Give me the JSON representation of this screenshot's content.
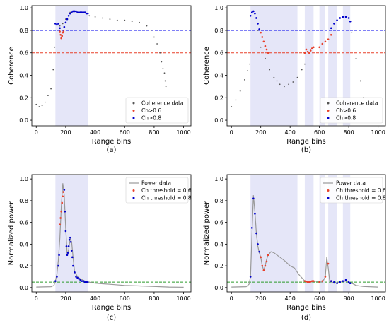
{
  "chart_data": [
    {
      "type": "scatter",
      "caption": "(a)",
      "xlabel": "Range bins",
      "ylabel": "Coherence",
      "xlim": [
        -30,
        1050
      ],
      "ylim": [
        -0.05,
        1.02
      ],
      "xticks": [
        0,
        200,
        400,
        600,
        800,
        1000
      ],
      "yticks": [
        0.0,
        0.2,
        0.4,
        0.6,
        0.8,
        1.0
      ],
      "shaded_ranges": [
        [
          130,
          350
        ]
      ],
      "hlines": [
        {
          "y": 0.6,
          "color": "#e8402a"
        },
        {
          "y": 0.8,
          "color": "#0000ee"
        }
      ],
      "legend": {
        "position": "lower-right",
        "entries": [
          "Coherence data",
          "Ch>0.6",
          "Ch>0.8"
        ]
      },
      "series": [
        {
          "name": "Coherence data",
          "color": "#555555",
          "style": "dots",
          "x": [
            0,
            20,
            40,
            60,
            80,
            100,
            115,
            125,
            130,
            140,
            160,
            180,
            200,
            230,
            260,
            300,
            340,
            360,
            400,
            450,
            500,
            550,
            600,
            650,
            700,
            750,
            780,
            800,
            820,
            840,
            850,
            860,
            870,
            875,
            880
          ],
          "y": [
            0.14,
            0.12,
            0.13,
            0.16,
            0.22,
            0.28,
            0.45,
            0.65,
            0.86,
            0.85,
            0.84,
            0.86,
            0.9,
            0.96,
            0.97,
            0.96,
            0.95,
            0.93,
            0.92,
            0.91,
            0.9,
            0.89,
            0.89,
            0.88,
            0.87,
            0.84,
            0.8,
            0.74,
            0.68,
            0.6,
            0.52,
            0.46,
            0.42,
            0.35,
            0.3
          ]
        },
        {
          "name": "Ch>0.6",
          "color": "#e8402a",
          "style": "dots",
          "x": [
            160,
            165,
            170,
            175,
            180,
            185
          ],
          "y": [
            0.79,
            0.76,
            0.73,
            0.75,
            0.78,
            0.79
          ]
        },
        {
          "name": "Ch>0.8",
          "color": "#0000cc",
          "style": "dots",
          "x": [
            130,
            140,
            150,
            160,
            190,
            200,
            210,
            220,
            230,
            240,
            250,
            260,
            270,
            280,
            290,
            300,
            310,
            320,
            330,
            340,
            350
          ],
          "y": [
            0.86,
            0.85,
            0.86,
            0.82,
            0.83,
            0.87,
            0.9,
            0.93,
            0.95,
            0.96,
            0.97,
            0.97,
            0.97,
            0.96,
            0.96,
            0.96,
            0.96,
            0.96,
            0.96,
            0.95,
            0.95
          ]
        }
      ]
    },
    {
      "type": "scatter",
      "caption": "(b)",
      "xlabel": "Range bins",
      "ylabel": "Coherence",
      "xlim": [
        -30,
        1050
      ],
      "ylim": [
        -0.05,
        1.02
      ],
      "xticks": [
        0,
        200,
        400,
        600,
        800,
        1000
      ],
      "yticks": [
        0.0,
        0.2,
        0.4,
        0.6,
        0.8,
        1.0
      ],
      "shaded_ranges": [
        [
          130,
          450
        ],
        [
          500,
          560
        ],
        [
          600,
          640
        ],
        [
          660,
          720
        ],
        [
          760,
          810
        ]
      ],
      "hlines": [
        {
          "y": 0.6,
          "color": "#e8402a"
        },
        {
          "y": 0.8,
          "color": "#0000ee"
        }
      ],
      "legend": {
        "position": "lower-right",
        "entries": [
          "Coherence data",
          "Ch>0.6",
          "Ch>0.8"
        ]
      },
      "series": [
        {
          "name": "Coherence data",
          "color": "#555555",
          "style": "dots",
          "x": [
            0,
            30,
            60,
            90,
            110,
            125,
            180,
            200,
            230,
            260,
            290,
            310,
            330,
            360,
            390,
            420,
            450,
            480,
            500,
            820,
            850,
            880,
            900
          ],
          "y": [
            0.12,
            0.18,
            0.26,
            0.36,
            0.44,
            0.5,
            0.8,
            0.65,
            0.55,
            0.45,
            0.38,
            0.35,
            0.32,
            0.3,
            0.32,
            0.34,
            0.38,
            0.45,
            0.5,
            0.78,
            0.55,
            0.35,
            0.2
          ]
        },
        {
          "name": "Ch>0.6",
          "color": "#e8402a",
          "style": "dots",
          "x": [
            200,
            210,
            220,
            230,
            240,
            250,
            500,
            510,
            520,
            530,
            540,
            550,
            560,
            600,
            620,
            640,
            660,
            680
          ],
          "y": [
            0.78,
            0.74,
            0.7,
            0.66,
            0.63,
            0.6,
            0.6,
            0.63,
            0.61,
            0.6,
            0.62,
            0.64,
            0.65,
            0.65,
            0.68,
            0.7,
            0.72,
            0.76
          ]
        },
        {
          "name": "Ch>0.8",
          "color": "#0000cc",
          "style": "dots",
          "x": [
            130,
            140,
            150,
            160,
            170,
            180,
            190,
            680,
            700,
            720,
            740,
            760,
            780,
            800,
            810
          ],
          "y": [
            0.93,
            0.96,
            0.97,
            0.95,
            0.91,
            0.86,
            0.81,
            0.82,
            0.86,
            0.89,
            0.91,
            0.92,
            0.92,
            0.91,
            0.88
          ]
        }
      ]
    },
    {
      "type": "line",
      "caption": "(c)",
      "xlabel": "Range bins",
      "ylabel": "Normalized power",
      "xlim": [
        -30,
        1050
      ],
      "ylim": [
        -0.04,
        1.04
      ],
      "xticks": [
        0,
        200,
        400,
        600,
        800,
        1000
      ],
      "yticks": [
        0.0,
        0.2,
        0.4,
        0.6,
        0.8,
        1.0
      ],
      "shaded_ranges": [
        [
          130,
          350
        ]
      ],
      "hlines": [
        {
          "y": 0.05,
          "color": "#2a9a2a"
        }
      ],
      "legend": {
        "position": "upper-right",
        "entries": [
          "Power data",
          "Ch threshold = 0.6",
          "Ch threshold = 0.8"
        ]
      },
      "series": [
        {
          "name": "Power data",
          "color": "#999999",
          "style": "line",
          "x": [
            0,
            100,
            120,
            130,
            140,
            150,
            160,
            170,
            180,
            190,
            200,
            210,
            220,
            230,
            240,
            250,
            260,
            280,
            300,
            330,
            360,
            400,
            450,
            500,
            600,
            700,
            800,
            900,
            1000
          ],
          "y": [
            0.005,
            0.008,
            0.02,
            0.06,
            0.12,
            0.25,
            0.45,
            0.75,
            0.96,
            0.85,
            0.55,
            0.3,
            0.35,
            0.45,
            0.42,
            0.28,
            0.15,
            0.1,
            0.08,
            0.06,
            0.05,
            0.04,
            0.035,
            0.03,
            0.02,
            0.015,
            0.01,
            0.005,
            0.003
          ]
        },
        {
          "name": "Ch threshold = 0.6",
          "color": "#e8402a",
          "style": "dots",
          "x": [
            160,
            165,
            170,
            175,
            180,
            185
          ],
          "y": [
            0.58,
            0.64,
            0.7,
            0.78,
            0.84,
            0.88
          ]
        },
        {
          "name": "Ch threshold = 0.8",
          "color": "#0000cc",
          "style": "dots",
          "x": [
            130,
            140,
            150,
            155,
            190,
            195,
            200,
            205,
            210,
            215,
            220,
            225,
            230,
            235,
            240,
            245,
            250,
            260,
            270,
            280,
            290,
            300,
            310,
            320,
            330,
            340,
            350
          ],
          "y": [
            0.06,
            0.1,
            0.2,
            0.3,
            0.9,
            0.7,
            0.52,
            0.38,
            0.3,
            0.32,
            0.38,
            0.44,
            0.46,
            0.42,
            0.34,
            0.28,
            0.2,
            0.14,
            0.1,
            0.09,
            0.08,
            0.07,
            0.06,
            0.06,
            0.05,
            0.05,
            0.05
          ]
        }
      ]
    },
    {
      "type": "line",
      "caption": "(d)",
      "xlabel": "Range bins",
      "ylabel": "Normalized power",
      "xlim": [
        -30,
        1050
      ],
      "ylim": [
        -0.04,
        1.04
      ],
      "xticks": [
        0,
        200,
        400,
        600,
        800,
        1000
      ],
      "yticks": [
        0.0,
        0.2,
        0.4,
        0.6,
        0.8,
        1.0
      ],
      "shaded_ranges": [
        [
          130,
          450
        ],
        [
          500,
          560
        ],
        [
          600,
          640
        ],
        [
          660,
          720
        ],
        [
          760,
          810
        ]
      ],
      "hlines": [
        {
          "y": 0.05,
          "color": "#2a9a2a"
        }
      ],
      "legend": {
        "position": "upper-right",
        "entries": [
          "Power data",
          "Ch threshold = 0.6",
          "Ch threshold = 0.8"
        ]
      },
      "series": [
        {
          "name": "Power data",
          "color": "#999999",
          "style": "line",
          "x": [
            0,
            100,
            120,
            130,
            140,
            150,
            160,
            170,
            180,
            190,
            200,
            210,
            220,
            230,
            240,
            250,
            270,
            290,
            310,
            330,
            360,
            400,
            430,
            460,
            500,
            540,
            580,
            620,
            640,
            650,
            660,
            670,
            700,
            740,
            780,
            820,
            850,
            900,
            1000
          ],
          "y": [
            0.005,
            0.008,
            0.03,
            0.1,
            0.5,
            0.85,
            0.7,
            0.5,
            0.38,
            0.32,
            0.28,
            0.2,
            0.16,
            0.2,
            0.26,
            0.3,
            0.33,
            0.32,
            0.3,
            0.28,
            0.25,
            0.2,
            0.18,
            0.12,
            0.06,
            0.05,
            0.06,
            0.05,
            0.1,
            0.28,
            0.18,
            0.06,
            0.04,
            0.05,
            0.06,
            0.04,
            0.02,
            0.01,
            0.005
          ]
        },
        {
          "name": "Ch threshold = 0.6",
          "color": "#e8402a",
          "style": "dots",
          "x": [
            200,
            210,
            220,
            230,
            240,
            250,
            500,
            510,
            520,
            530,
            540,
            550,
            560,
            600,
            620,
            640,
            660,
            680
          ],
          "y": [
            0.28,
            0.2,
            0.16,
            0.2,
            0.24,
            0.3,
            0.06,
            0.055,
            0.05,
            0.05,
            0.055,
            0.06,
            0.06,
            0.05,
            0.06,
            0.1,
            0.22,
            0.06
          ]
        },
        {
          "name": "Ch threshold = 0.8",
          "color": "#0000cc",
          "style": "dots",
          "x": [
            130,
            140,
            150,
            160,
            170,
            180,
            190,
            680,
            700,
            720,
            740,
            760,
            780,
            800,
            810
          ],
          "y": [
            0.1,
            0.55,
            0.82,
            0.68,
            0.5,
            0.4,
            0.33,
            0.06,
            0.05,
            0.04,
            0.05,
            0.06,
            0.07,
            0.05,
            0.04
          ]
        }
      ]
    }
  ]
}
